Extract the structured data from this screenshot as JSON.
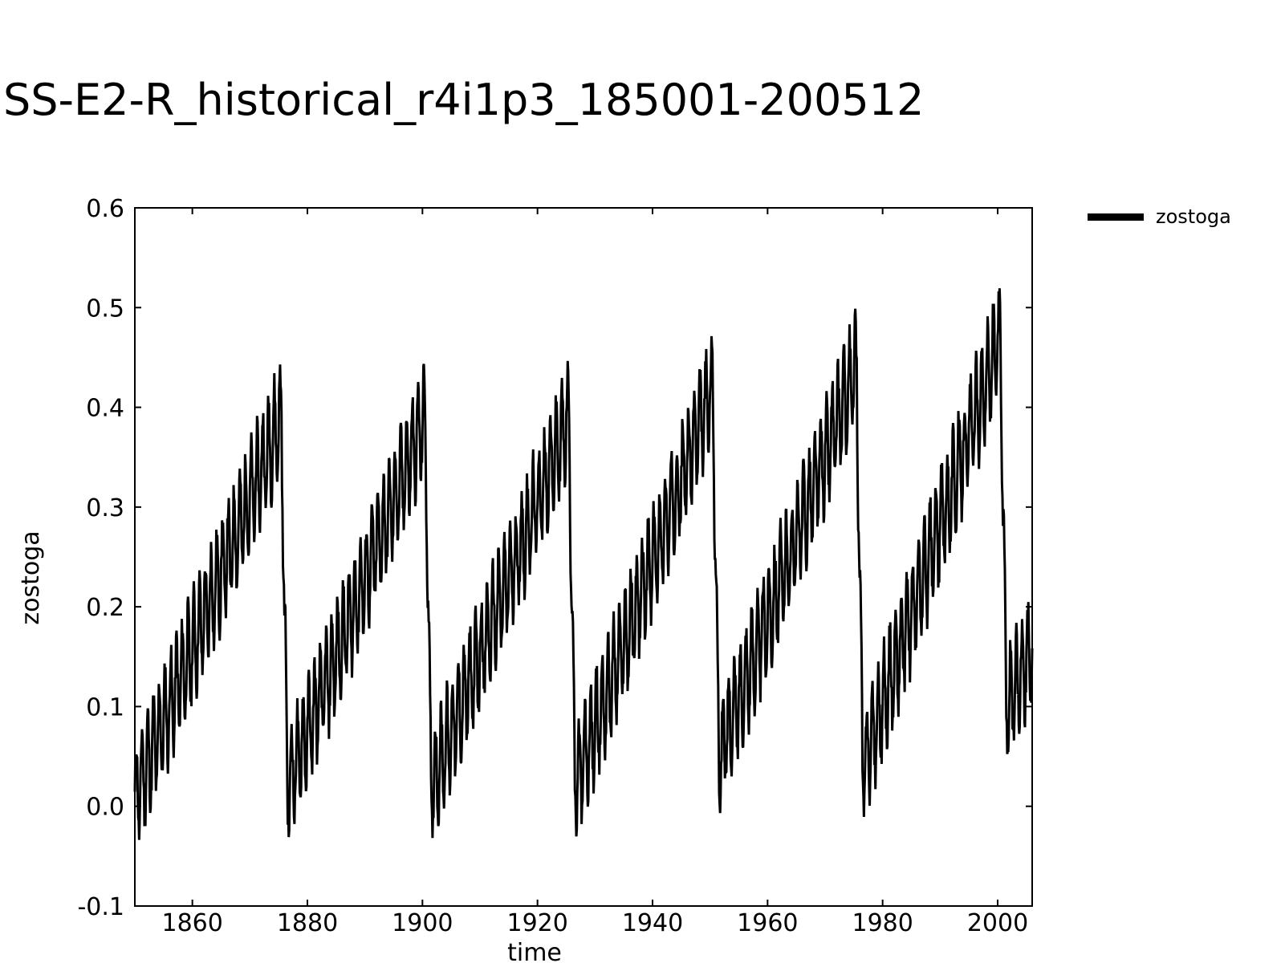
{
  "chart_data": {
    "type": "line",
    "title": "SS-E2-R_historical_r4i1p3_185001-200512",
    "xlabel": "time",
    "ylabel": "zostoga",
    "xlim": [
      1850,
      2006
    ],
    "ylim": [
      -0.1,
      0.6
    ],
    "x_ticks": [
      1860,
      1880,
      1900,
      1920,
      1940,
      1960,
      1980,
      2000
    ],
    "y_ticks": [
      "-0.1",
      "0.0",
      "0.1",
      "0.2",
      "0.3",
      "0.4",
      "0.5",
      "0.6"
    ],
    "grid": false,
    "legend_position": "top-right, outside plot",
    "series": [
      {
        "name": "zostoga",
        "color": "#000000",
        "x": [
          1850,
          1875.5,
          1876.5,
          1900.5,
          1901.5,
          1925.5,
          1926.5,
          1950.5,
          1951.5,
          1975.5,
          1976.5,
          2000.5,
          2001.5,
          2006
        ],
        "y": [
          0.01,
          0.39,
          0.02,
          0.39,
          0.02,
          0.39,
          0.02,
          0.42,
          0.05,
          0.44,
          0.04,
          0.47,
          0.1,
          0.16
        ],
        "seasonal_amplitude": 0.05
      }
    ]
  }
}
